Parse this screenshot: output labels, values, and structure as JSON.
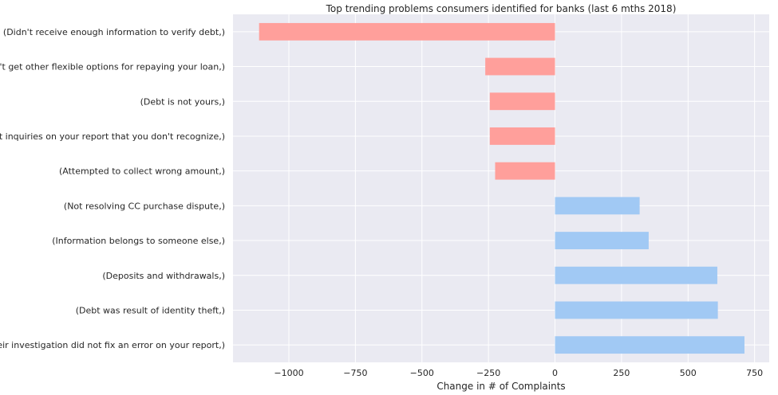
{
  "chart_data": {
    "type": "bar",
    "orientation": "horizontal",
    "title": "Top trending problems consumers identified for banks (last 6 mths 2018)",
    "xlabel": "Change in # of Complaints",
    "ylabel": "",
    "xlim": [
      -1210,
      805
    ],
    "xticks": [
      -1000,
      -750,
      -500,
      -250,
      0,
      250,
      500,
      750
    ],
    "xtick_labels": [
      "−1000",
      "−750",
      "−500",
      "−250",
      "0",
      "250",
      "500",
      "750"
    ],
    "grid": true,
    "categories": [
      "(Didn't receive enough information to verify debt,)",
      "(Can't get other flexible options for repaying your loan,)",
      "(Debt is not yours,)",
      "(Credit inquiries on your report that you don't recognize,)",
      "(Attempted to collect wrong amount,)",
      "(Not resolving CC purchase dispute,)",
      "(Information belongs to someone else,)",
      "(Deposits and withdrawals,)",
      "(Debt was result of identity theft,)",
      "(Their investigation did not fix an error on your report,)"
    ],
    "values": [
      -1112,
      -262,
      -245,
      -245,
      -225,
      318,
      352,
      610,
      612,
      712
    ],
    "colors": {
      "negative": "#ff9f9b",
      "positive": "#a1c9f4",
      "background": "#eaeaf2",
      "grid": "#ffffff",
      "text": "#262626"
    }
  }
}
